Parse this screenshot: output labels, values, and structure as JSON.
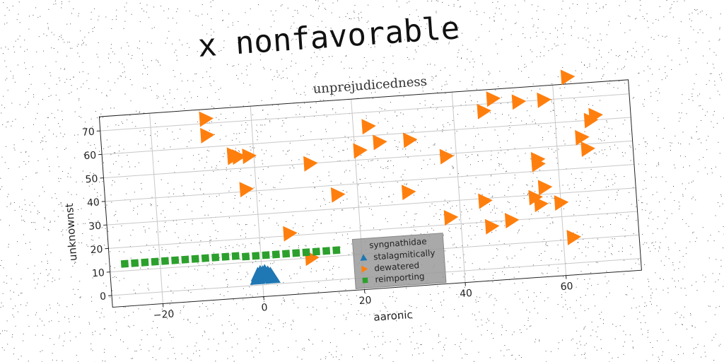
{
  "title": "x nonfavorable",
  "chart_data": {
    "type": "scatter",
    "title": "unprejudicedness",
    "xlabel": "aaronic",
    "ylabel": "unknownst",
    "xlim": [
      -30,
      75
    ],
    "ylim": [
      -5,
      76
    ],
    "xticks": [
      -20,
      0,
      20,
      40,
      60
    ],
    "yticks": [
      0,
      10,
      20,
      30,
      40,
      50,
      60,
      70
    ],
    "xtick_labels": [
      "−20",
      "0",
      "20",
      "40",
      "60"
    ],
    "ytick_labels": [
      "0",
      "10",
      "20",
      "30",
      "40",
      "50",
      "60",
      "70"
    ],
    "grid": true,
    "legend": {
      "title": "syngnathidae",
      "placement": "lower center"
    },
    "series": [
      {
        "name": "stalagmitically",
        "marker": "triangle-up",
        "color": "#1f77b4",
        "points": [
          [
            -1,
            3
          ],
          [
            -0.5,
            3.5
          ],
          [
            0,
            4
          ],
          [
            0.5,
            4
          ],
          [
            1,
            4
          ],
          [
            1.5,
            3.5
          ],
          [
            2,
            3
          ],
          [
            -0.8,
            4.5
          ],
          [
            0.2,
            5
          ],
          [
            1.2,
            4.8
          ],
          [
            0.6,
            5.5
          ],
          [
            -0.3,
            5.2
          ],
          [
            1.7,
            4.2
          ]
        ]
      },
      {
        "name": "dewatered",
        "marker": "triangle-right",
        "color": "#ff7f0e",
        "points": [
          [
            -9,
            72
          ],
          [
            -9,
            65
          ],
          [
            -4,
            55
          ],
          [
            -4,
            56
          ],
          [
            -3,
            55
          ],
          [
            -1,
            55
          ],
          [
            -2,
            41
          ],
          [
            6,
            21
          ],
          [
            10,
            10
          ],
          [
            11,
            50
          ],
          [
            16,
            36
          ],
          [
            21,
            54
          ],
          [
            23,
            64
          ],
          [
            25,
            57
          ],
          [
            30,
            35
          ],
          [
            31,
            57
          ],
          [
            38,
            23
          ],
          [
            38,
            49
          ],
          [
            45,
            29
          ],
          [
            46,
            18
          ],
          [
            46,
            67
          ],
          [
            48,
            72
          ],
          [
            50,
            20
          ],
          [
            53,
            70
          ],
          [
            55,
            29
          ],
          [
            56,
            26
          ],
          [
            56,
            43
          ],
          [
            56,
            45
          ],
          [
            57,
            33
          ],
          [
            58,
            70
          ],
          [
            60,
            26
          ],
          [
            62,
            11
          ],
          [
            63,
            79
          ],
          [
            65,
            53
          ],
          [
            66,
            48
          ],
          [
            67,
            60
          ],
          [
            68,
            62
          ]
        ]
      },
      {
        "name": "reimporting",
        "marker": "square",
        "color": "#2ca02c",
        "points": [
          [
            -27,
            13
          ],
          [
            -25,
            13
          ],
          [
            -23,
            13
          ],
          [
            -21,
            13
          ],
          [
            -19,
            13
          ],
          [
            -17,
            13
          ],
          [
            -15,
            13
          ],
          [
            -13,
            13
          ],
          [
            -11,
            13
          ],
          [
            -9,
            13
          ],
          [
            -7,
            13
          ],
          [
            -5,
            13
          ],
          [
            -3,
            12.5
          ],
          [
            -1,
            12.5
          ],
          [
            1,
            12.5
          ],
          [
            3,
            12.5
          ],
          [
            5,
            12.5
          ],
          [
            7,
            12.5
          ],
          [
            9,
            12.5
          ],
          [
            11,
            12.5
          ],
          [
            13,
            12.5
          ],
          [
            15,
            12.5
          ]
        ]
      }
    ]
  }
}
